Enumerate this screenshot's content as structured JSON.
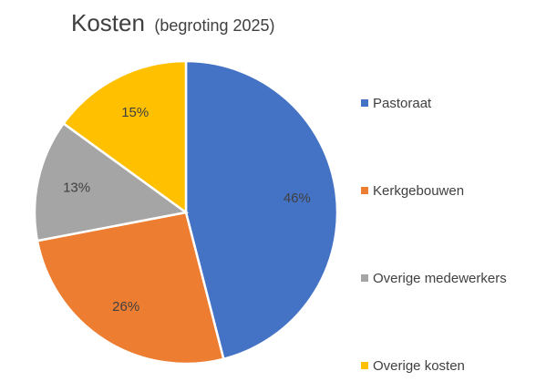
{
  "chart_data": {
    "type": "pie",
    "title": "Kosten",
    "subtitle": "(begroting 2025)",
    "legend": "right",
    "slices": [
      {
        "label": "Pastoraat",
        "value": 46,
        "display": "46%",
        "color": "#4472C4"
      },
      {
        "label": "Kerkgebouwen",
        "value": 26,
        "display": "26%",
        "color": "#ED7D31"
      },
      {
        "label": "Overige medewerkers",
        "value": 13,
        "display": "13%",
        "color": "#A5A5A5"
      },
      {
        "label": "Overige kosten",
        "value": 15,
        "display": "15%",
        "color": "#FFC000"
      }
    ]
  }
}
